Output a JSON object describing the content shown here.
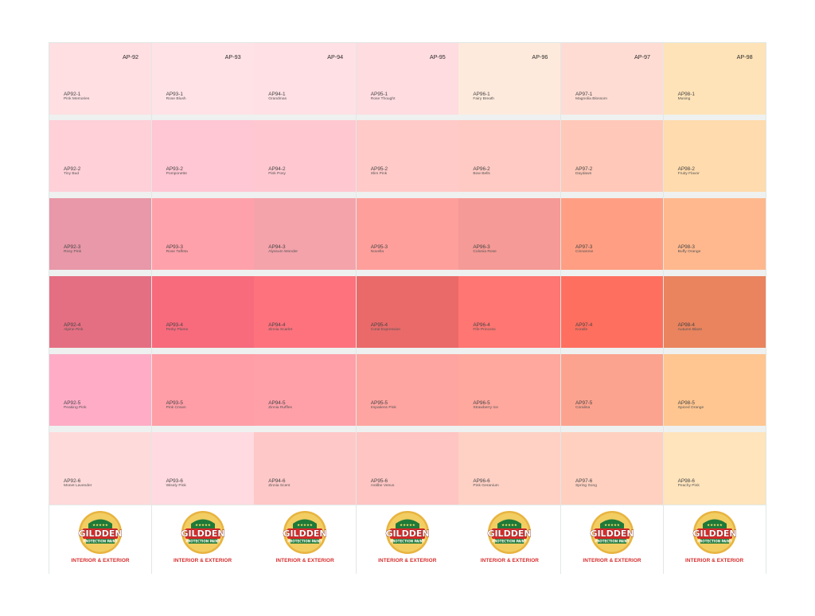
{
  "brand": {
    "word": "GILDDEN",
    "sub": "PROTECTION PAINT",
    "stars": "★★★★★",
    "tagline": "INTERIOR & EXTERIOR"
  },
  "columns": [
    {
      "code": "AP-92",
      "swatches": [
        {
          "code": "AP92-1",
          "name": "Pink Memories",
          "color": "#ffdfe2"
        },
        {
          "code": "AP92-2",
          "name": "Tiny Bud",
          "color": "#ffd0d8"
        },
        {
          "code": "AP92-3",
          "name": "Rosy Pink",
          "color": "#e898a8"
        },
        {
          "code": "AP92-4",
          "name": "Alpine Pink",
          "color": "#e56f82"
        },
        {
          "code": "AP92-5",
          "name": "Peaking Pink",
          "color": "#ffadc7"
        },
        {
          "code": "AP92-6",
          "name": "Monet Lavender",
          "color": "#ffdada"
        }
      ]
    },
    {
      "code": "AP-93",
      "swatches": [
        {
          "code": "AP93-1",
          "name": "Rose Blush",
          "color": "#ffe2e6"
        },
        {
          "code": "AP93-2",
          "name": "Pomponette",
          "color": "#ffc6d3"
        },
        {
          "code": "AP93-3",
          "name": "Rose Taffeta",
          "color": "#ffa1aa"
        },
        {
          "code": "AP93-4",
          "name": "Perky Plume",
          "color": "#f76b7d"
        },
        {
          "code": "AP93-5",
          "name": "Pink Crown",
          "color": "#ff9ea7"
        },
        {
          "code": "AP93-6",
          "name": "Wisely Pink",
          "color": "#ffdae0"
        }
      ]
    },
    {
      "code": "AP-94",
      "swatches": [
        {
          "code": "AP94-1",
          "name": "Grandmas",
          "color": "#ffe0e4"
        },
        {
          "code": "AP94-2",
          "name": "Pink Posy",
          "color": "#ffc8d0"
        },
        {
          "code": "AP94-3",
          "name": "Alyssum Wonder",
          "color": "#f4a3ab"
        },
        {
          "code": "AP94-4",
          "name": "Zinnia Scarlet",
          "color": "#fd727d"
        },
        {
          "code": "AP94-5",
          "name": "Zinnia Ruffles",
          "color": "#ffa0a9"
        },
        {
          "code": "AP94-6",
          "name": "Zinnia Scent",
          "color": "#ffc8c8"
        }
      ]
    },
    {
      "code": "AP-95",
      "swatches": [
        {
          "code": "AP95-1",
          "name": "Rose Thought",
          "color": "#ffdce0"
        },
        {
          "code": "AP95-2",
          "name": "Slim Pink",
          "color": "#ffcac8"
        },
        {
          "code": "AP95-3",
          "name": "Novella",
          "color": "#ff9f9c"
        },
        {
          "code": "AP95-4",
          "name": "Coral Expression",
          "color": "#ea6a6a"
        },
        {
          "code": "AP95-5",
          "name": "Impatiens Pink",
          "color": "#ffa5a1"
        },
        {
          "code": "AP95-6",
          "name": "Astilbe Venus",
          "color": "#ffc5c3"
        }
      ]
    },
    {
      "code": "AP-96",
      "swatches": [
        {
          "code": "AP96-1",
          "name": "Fairy Breath",
          "color": "#feeadc"
        },
        {
          "code": "AP96-2",
          "name": "Bow Bells",
          "color": "#ffcac3"
        },
        {
          "code": "AP96-3",
          "name": "Colonia Rose",
          "color": "#f59a96"
        },
        {
          "code": "AP96-4",
          "name": "Fife Princess",
          "color": "#ff7672"
        },
        {
          "code": "AP96-5",
          "name": "Strawberry Ice",
          "color": "#ffa89e"
        },
        {
          "code": "AP96-6",
          "name": "Pink Geranium",
          "color": "#ffd1c5"
        }
      ]
    },
    {
      "code": "AP-97",
      "swatches": [
        {
          "code": "AP97-1",
          "name": "Magnolia Blossom",
          "color": "#ffdcd3"
        },
        {
          "code": "AP97-2",
          "name": "Daydawn",
          "color": "#ffc8b8"
        },
        {
          "code": "AP97-3",
          "name": "Cinnarose",
          "color": "#ff9e83"
        },
        {
          "code": "AP97-4",
          "name": "Koralle",
          "color": "#ff6f5f"
        },
        {
          "code": "AP97-5",
          "name": "Coralina",
          "color": "#fca38f"
        },
        {
          "code": "AP97-6",
          "name": "Spring Song",
          "color": "#ffd0c0"
        }
      ]
    },
    {
      "code": "AP-98",
      "swatches": [
        {
          "code": "AP98-1",
          "name": "Musing",
          "color": "#ffe3b8"
        },
        {
          "code": "AP98-2",
          "name": "Fruity Flavor",
          "color": "#ffdbad"
        },
        {
          "code": "AP98-3",
          "name": "Buffy Orange",
          "color": "#ffb88e"
        },
        {
          "code": "AP98-4",
          "name": "Autumn Blaze",
          "color": "#e9845f"
        },
        {
          "code": "AP98-5",
          "name": "Spiced Orange",
          "color": "#ffc691"
        },
        {
          "code": "AP98-6",
          "name": "Peachy Pink",
          "color": "#ffe4bc"
        }
      ]
    }
  ]
}
